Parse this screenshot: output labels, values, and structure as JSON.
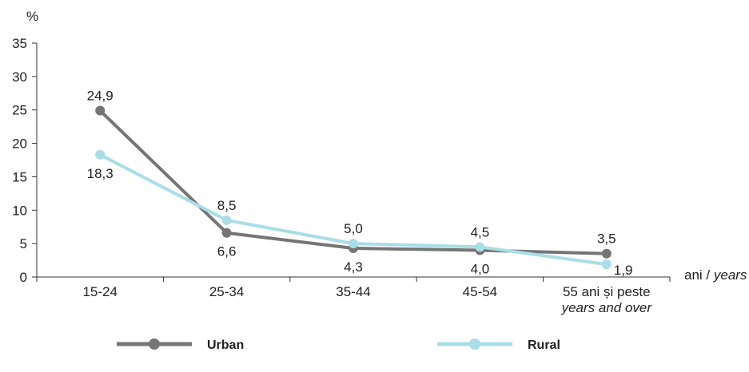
{
  "chart_data": {
    "type": "line",
    "y_unit": "%",
    "x_unit": "ani / ",
    "x_unit_italic": "years",
    "categories": [
      {
        "line1": "15-24",
        "line2": ""
      },
      {
        "line1": "25-34",
        "line2": ""
      },
      {
        "line1": "35-44",
        "line2": ""
      },
      {
        "line1": "45-54",
        "line2": ""
      },
      {
        "line1": "55 ani și peste",
        "line2": "years and over"
      }
    ],
    "ylim": [
      0,
      35
    ],
    "yticks": [
      "0",
      "5",
      "10",
      "15",
      "20",
      "25",
      "30",
      "35"
    ],
    "grid": false,
    "legend_position": "bottom",
    "series": [
      {
        "name": "Urban",
        "color": "#757575",
        "values": [
          24.9,
          6.6,
          4.3,
          4.0,
          3.5
        ],
        "labels": [
          "24,9",
          "6,6",
          "4,3",
          "4,0",
          "3,5"
        ],
        "label_side": [
          "above",
          "below",
          "below",
          "below",
          "above"
        ]
      },
      {
        "name": "Rural",
        "color": "#a9dde7",
        "values": [
          18.3,
          8.5,
          5.0,
          4.5,
          1.9
        ],
        "labels": [
          "18,3",
          "8,5",
          "5,0",
          "4,5",
          "1,9"
        ],
        "label_side": [
          "below",
          "above",
          "above",
          "above",
          "right"
        ]
      }
    ]
  }
}
